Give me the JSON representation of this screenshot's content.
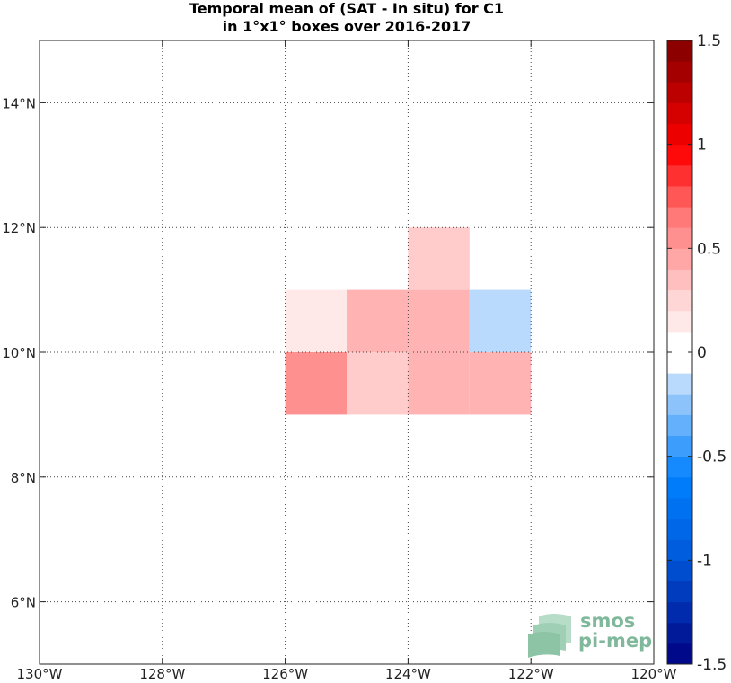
{
  "title_line1": "Temporal mean of (SAT - In situ) for C1",
  "title_line2": "in 1°x1° boxes over 2016-2017",
  "chart_data": {
    "type": "heatmap",
    "xlim": [
      -130,
      -120
    ],
    "ylim": [
      5,
      15
    ],
    "x_ticks": [
      {
        "value": -130,
        "label": "130°W"
      },
      {
        "value": -128,
        "label": "128°W"
      },
      {
        "value": -126,
        "label": "126°W"
      },
      {
        "value": -124,
        "label": "124°W"
      },
      {
        "value": -122,
        "label": "122°W"
      },
      {
        "value": -120,
        "label": "120°W"
      }
    ],
    "y_ticks": [
      {
        "value": 6,
        "label": "6°N"
      },
      {
        "value": 8,
        "label": "8°N"
      },
      {
        "value": 10,
        "label": "10°N"
      },
      {
        "value": 12,
        "label": "12°N"
      },
      {
        "value": 14,
        "label": "14°N"
      }
    ],
    "grid": true,
    "cells": [
      {
        "lon": -126,
        "lat": 10,
        "value": 0.15
      },
      {
        "lon": -125,
        "lat": 10,
        "value": 0.4
      },
      {
        "lon": -124,
        "lat": 10,
        "value": 0.4
      },
      {
        "lon": -123,
        "lat": 10,
        "value": -0.15
      },
      {
        "lon": -124,
        "lat": 11,
        "value": 0.3
      },
      {
        "lon": -126,
        "lat": 9,
        "value": 0.55
      },
      {
        "lon": -125,
        "lat": 9,
        "value": 0.3
      },
      {
        "lon": -124,
        "lat": 9,
        "value": 0.4
      },
      {
        "lon": -123,
        "lat": 9,
        "value": 0.4
      }
    ],
    "colorbar": {
      "clim": [
        -1.5,
        1.5
      ],
      "levels": 30,
      "ticks": [
        {
          "value": 1.5,
          "label": "1.5"
        },
        {
          "value": 1,
          "label": "1"
        },
        {
          "value": 0.5,
          "label": "0.5"
        },
        {
          "value": 0,
          "label": "0"
        },
        {
          "value": -0.5,
          "label": "-0.5"
        },
        {
          "value": -1,
          "label": "-1"
        },
        {
          "value": -1.5,
          "label": "-1.5"
        }
      ]
    }
  },
  "logo": {
    "line1": "smos",
    "line2": "pi-mep"
  }
}
